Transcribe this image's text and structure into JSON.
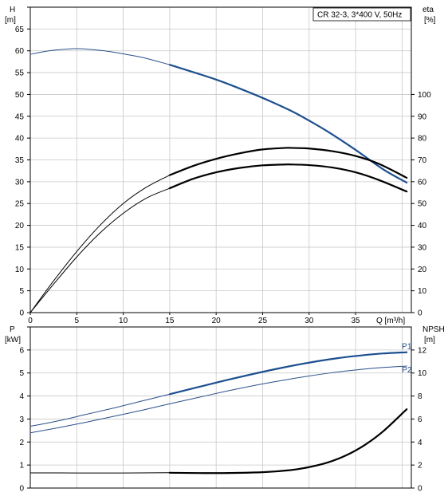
{
  "chart_data": [
    {
      "type": "line",
      "title": "CR 32-3, 3*400 V, 50Hz",
      "xlabel": "Q [m³/h]",
      "ylabel_left": [
        "H",
        "[m]"
      ],
      "ylabel_right": [
        "eta",
        "[%]"
      ],
      "xlim": [
        0,
        41
      ],
      "ylim_left": [
        0,
        70
      ],
      "ylim_right": [
        0,
        140
      ],
      "xticks": [
        "0",
        "5",
        "10",
        "15",
        "20",
        "25",
        "30",
        "35"
      ],
      "yticks_left": [
        "0",
        "5",
        "10",
        "15",
        "20",
        "25",
        "30",
        "35",
        "40",
        "45",
        "50",
        "55",
        "60",
        "65"
      ],
      "yticks_right": [
        "0",
        "10",
        "20",
        "30",
        "40",
        "50",
        "60",
        "70",
        "80",
        "90",
        "100"
      ],
      "grid": true,
      "series": [
        {
          "axis": "left",
          "color": "#2a4f8a",
          "x": [
            0,
            2,
            4,
            5,
            6,
            8,
            10,
            12,
            14,
            15
          ],
          "y": [
            59.2,
            60.0,
            60.4,
            60.5,
            60.4,
            60.0,
            59.3,
            58.5,
            57.4,
            56.8
          ]
        },
        {
          "axis": "left",
          "color": "#1d4f8f",
          "emphasis": true,
          "x": [
            15,
            18,
            20,
            22,
            25,
            28,
            30,
            32,
            35,
            38,
            40.5
          ],
          "y": [
            56.8,
            54.8,
            53.4,
            51.8,
            49.2,
            46.3,
            44.0,
            41.5,
            37.3,
            32.8,
            29.8
          ]
        },
        {
          "axis": "right",
          "x": [
            0,
            2.5,
            5,
            7.5,
            10,
            12.5,
            15
          ],
          "y": [
            0,
            14.5,
            28,
            40,
            50,
            57.5,
            63
          ]
        },
        {
          "axis": "right",
          "emphasis": true,
          "x": [
            15,
            17.5,
            20,
            22.5,
            25,
            27.5,
            28,
            30,
            32.5,
            35,
            37.5,
            40.5
          ],
          "y": [
            63,
            67.2,
            70.5,
            73,
            74.8,
            75.5,
            75.5,
            75.2,
            74,
            71.8,
            68.2,
            61.8
          ]
        },
        {
          "axis": "right",
          "x": [
            0,
            2.5,
            5,
            7.5,
            10,
            12.5,
            15
          ],
          "y": [
            0,
            13,
            25.5,
            36.5,
            45.5,
            52.5,
            57
          ]
        },
        {
          "axis": "right",
          "emphasis": true,
          "x": [
            15,
            17.5,
            20,
            22.5,
            25,
            27.5,
            28,
            30,
            32.5,
            35,
            37.5,
            40.5
          ],
          "y": [
            57,
            61.3,
            64.3,
            66.3,
            67.5,
            67.9,
            67.9,
            67.6,
            66.5,
            64.3,
            60.8,
            55.5
          ]
        }
      ]
    },
    {
      "type": "line",
      "ylabel_left": [
        "P",
        "[kW]"
      ],
      "ylabel_right": [
        "NPSH",
        "[m]"
      ],
      "xlim": [
        0,
        41
      ],
      "ylim_left": [
        0,
        7
      ],
      "ylim_right": [
        0,
        14
      ],
      "yticks_left": [
        "0",
        "1",
        "2",
        "3",
        "4",
        "5",
        "6"
      ],
      "yticks_right": [
        "0",
        "2",
        "4",
        "6",
        "8",
        "10",
        "12"
      ],
      "grid": true,
      "series": [
        {
          "name": "P1",
          "axis": "left",
          "color": "#2a4f8a",
          "x": [
            0,
            3,
            6,
            9,
            12,
            15
          ],
          "y": [
            2.68,
            2.92,
            3.2,
            3.48,
            3.78,
            4.08
          ]
        },
        {
          "name": "P1",
          "axis": "left",
          "color": "#1d4f8f",
          "emphasis": true,
          "x": [
            15,
            18,
            21,
            24,
            27,
            30,
            33,
            36,
            38,
            40.5
          ],
          "y": [
            4.08,
            4.38,
            4.68,
            4.96,
            5.22,
            5.45,
            5.64,
            5.78,
            5.85,
            5.9
          ]
        },
        {
          "name": "P2",
          "axis": "left",
          "color": "#2a4f8a",
          "x": [
            0,
            3,
            6,
            9,
            12,
            15,
            18,
            21,
            24,
            27,
            30,
            33,
            36,
            38,
            40.5
          ],
          "y": [
            2.4,
            2.62,
            2.86,
            3.12,
            3.38,
            3.66,
            3.93,
            4.2,
            4.45,
            4.67,
            4.87,
            5.04,
            5.17,
            5.24,
            5.3
          ]
        },
        {
          "axis": "right",
          "x": [
            0,
            5,
            10,
            15
          ],
          "y": [
            1.32,
            1.31,
            1.31,
            1.33
          ]
        },
        {
          "axis": "right",
          "emphasis": true,
          "x": [
            15,
            20,
            25,
            28,
            30,
            32,
            34,
            36,
            38,
            40.5
          ],
          "y": [
            1.33,
            1.3,
            1.38,
            1.56,
            1.82,
            2.22,
            2.85,
            3.75,
            4.95,
            6.85
          ]
        }
      ]
    }
  ]
}
